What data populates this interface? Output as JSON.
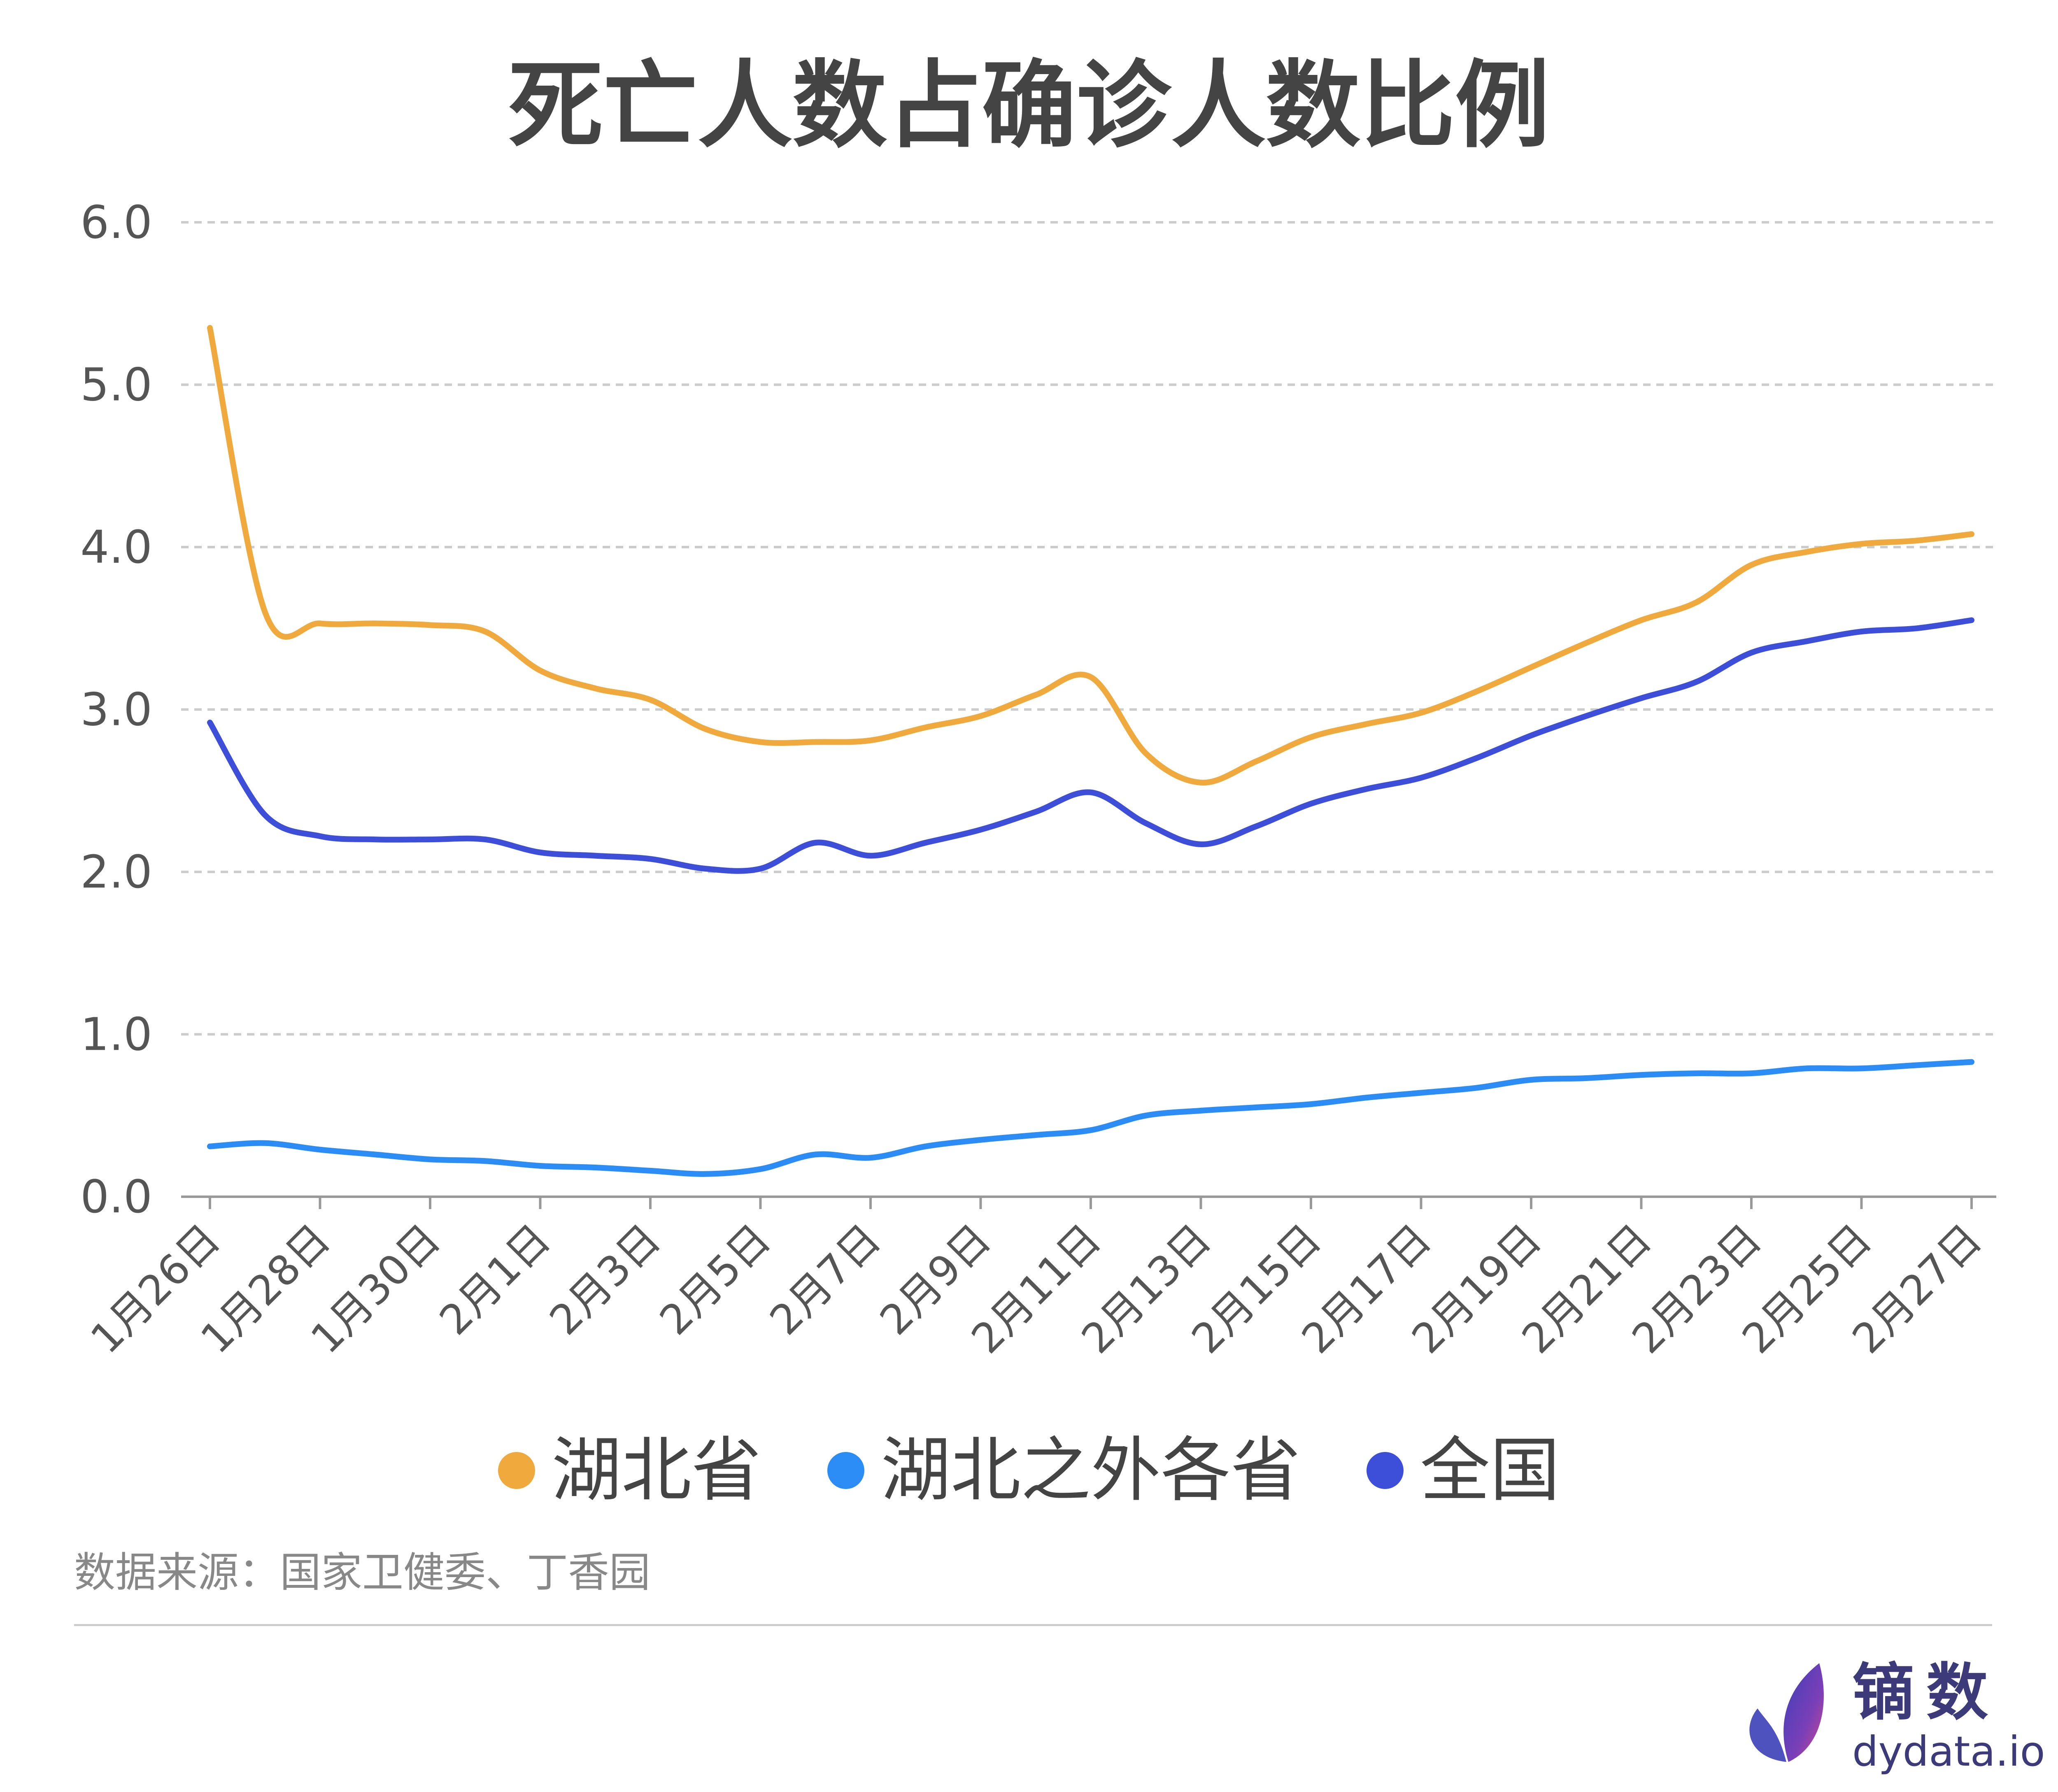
{
  "title": "死亡人数占确诊人数比例",
  "source": "数据来源：国家卫健委、丁香园",
  "brand": {
    "name": "镝数",
    "url": "dydata.io"
  },
  "colors": {
    "hubei": "#f0a93c",
    "outside": "#2b8cf5",
    "national": "#3d4ed8",
    "grid": "#cccccc",
    "axis": "#999999",
    "text": "#444444"
  },
  "chart_data": {
    "type": "line",
    "x": [
      "1月26日",
      "1月27日",
      "1月28日",
      "1月29日",
      "1月30日",
      "1月31日",
      "2月1日",
      "2月2日",
      "2月3日",
      "2月4日",
      "2月5日",
      "2月6日",
      "2月7日",
      "2月8日",
      "2月9日",
      "2月10日",
      "2月11日",
      "2月12日",
      "2月13日",
      "2月14日",
      "2月15日",
      "2月16日",
      "2月17日",
      "2月18日",
      "2月19日",
      "2月20日",
      "2月21日",
      "2月22日",
      "2月23日",
      "2月24日",
      "2月25日",
      "2月26日",
      "2月27日"
    ],
    "x_tick_labels": [
      "1月26日",
      "1月28日",
      "1月30日",
      "2月1日",
      "2月3日",
      "2月5日",
      "2月7日",
      "2月9日",
      "2月11日",
      "2月13日",
      "2月15日",
      "2月17日",
      "2月19日",
      "2月21日",
      "2月23日",
      "2月25日",
      "2月27日"
    ],
    "ylim": [
      0,
      6
    ],
    "yticks": [
      "0.0",
      "1.0",
      "2.0",
      "3.0",
      "4.0",
      "5.0",
      "6.0"
    ],
    "grid": true,
    "legend_position": "bottom",
    "series": [
      {
        "name": "湖北省",
        "values": [
          5.35,
          3.6,
          3.53,
          3.53,
          3.52,
          3.48,
          3.24,
          3.13,
          3.06,
          2.88,
          2.8,
          2.8,
          2.81,
          2.89,
          2.96,
          3.09,
          3.2,
          2.73,
          2.55,
          2.68,
          2.83,
          2.91,
          2.98,
          3.11,
          3.26,
          3.41,
          3.55,
          3.66,
          3.89,
          3.97,
          4.02,
          4.04,
          4.08
        ]
      },
      {
        "name": "湖北之外各省",
        "values": [
          0.31,
          0.33,
          0.29,
          0.26,
          0.23,
          0.22,
          0.19,
          0.18,
          0.16,
          0.14,
          0.17,
          0.26,
          0.24,
          0.31,
          0.35,
          0.38,
          0.41,
          0.5,
          0.53,
          0.55,
          0.57,
          0.61,
          0.64,
          0.67,
          0.72,
          0.73,
          0.75,
          0.76,
          0.76,
          0.79,
          0.79,
          0.81,
          0.83
        ]
      },
      {
        "name": "全国",
        "values": [
          2.92,
          2.35,
          2.22,
          2.2,
          2.2,
          2.2,
          2.12,
          2.1,
          2.08,
          2.02,
          2.02,
          2.18,
          2.1,
          2.18,
          2.26,
          2.37,
          2.49,
          2.3,
          2.17,
          2.28,
          2.42,
          2.51,
          2.58,
          2.7,
          2.84,
          2.96,
          3.07,
          3.17,
          3.35,
          3.42,
          3.48,
          3.5,
          3.55
        ]
      }
    ]
  }
}
